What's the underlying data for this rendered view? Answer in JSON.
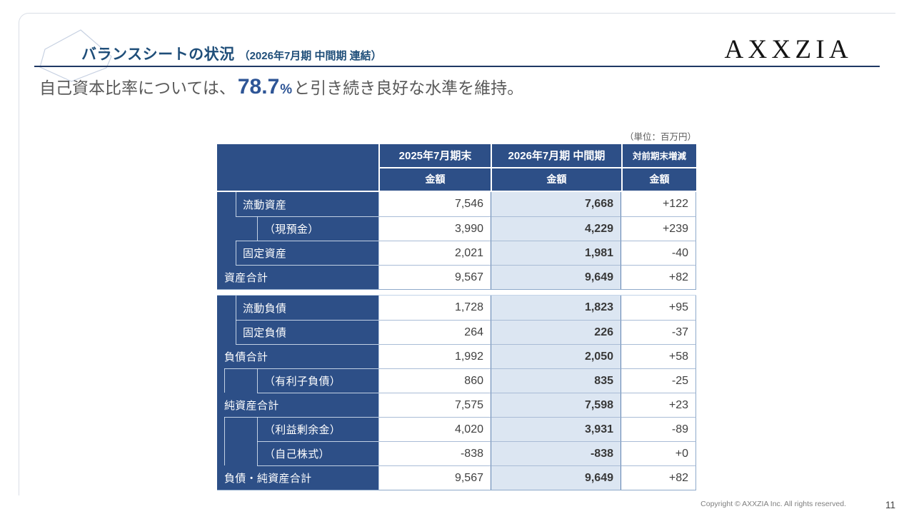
{
  "header": {
    "title": "バランスシートの状況",
    "period_note": "（2026年7月期 中間期 連結）",
    "logo": "AXXZIA"
  },
  "lead": {
    "prefix": "自己資本比率については、",
    "value": "78.7",
    "unit": "%",
    "suffix": "と引き続き良好な水準を維持。"
  },
  "table": {
    "unit_note": "（単位：百万円）",
    "columns": [
      {
        "label": "2025年7月期末",
        "sub_label": "金額"
      },
      {
        "label": "2026年7月期 中間期",
        "sub_label": "金額"
      },
      {
        "label": "対前期末増減",
        "sub_label": "金額"
      }
    ],
    "blocks": [
      {
        "name": "assets",
        "rows": [
          {
            "label": "流動資産",
            "indent": 1,
            "values": [
              "7,546",
              "7,668",
              "+122"
            ]
          },
          {
            "label": "（現預金）",
            "indent": 2,
            "values": [
              "3,990",
              "4,229",
              "+239"
            ]
          },
          {
            "label": "固定資産",
            "indent": 1,
            "values": [
              "2,021",
              "1,981",
              "-40"
            ]
          },
          {
            "label": "資産合計",
            "indent": 0,
            "values": [
              "9,567",
              "9,649",
              "+82"
            ]
          }
        ]
      },
      {
        "name": "liabilities-net-assets",
        "rows": [
          {
            "label": "流動負債",
            "indent": 1,
            "values": [
              "1,728",
              "1,823",
              "+95"
            ]
          },
          {
            "label": "固定負債",
            "indent": 1,
            "values": [
              "264",
              "226",
              "-37"
            ]
          },
          {
            "label": "負債合計",
            "indent": 0,
            "values": [
              "1,992",
              "2,050",
              "+58"
            ]
          },
          {
            "label": "（有利子負債）",
            "indent": 2,
            "values": [
              "860",
              "835",
              "-25"
            ]
          },
          {
            "label": "純資産合計",
            "indent": 0,
            "values": [
              "7,575",
              "7,598",
              "+23"
            ]
          },
          {
            "label": "（利益剰余金）",
            "indent": 2,
            "values": [
              "4,020",
              "3,931",
              "-89"
            ]
          },
          {
            "label": "（自己株式）",
            "indent": 2,
            "values": [
              "-838",
              "-838",
              "+0"
            ]
          },
          {
            "label": "負債・純資産合計",
            "indent": 0,
            "values": [
              "9,567",
              "9,649",
              "+82"
            ]
          }
        ]
      }
    ]
  },
  "footer": {
    "copyright": "Copyright © AXXZIA Inc. All rights reserved.",
    "page": "11"
  },
  "colors": {
    "table_header_blue": "#2d4f87",
    "highlight_column_bg": "#dce6f2",
    "title_navy": "#1f4e79",
    "rule_navy": "#1f3864",
    "lead_value_blue": "#2e5596",
    "lead_text_gray": "#595959"
  }
}
